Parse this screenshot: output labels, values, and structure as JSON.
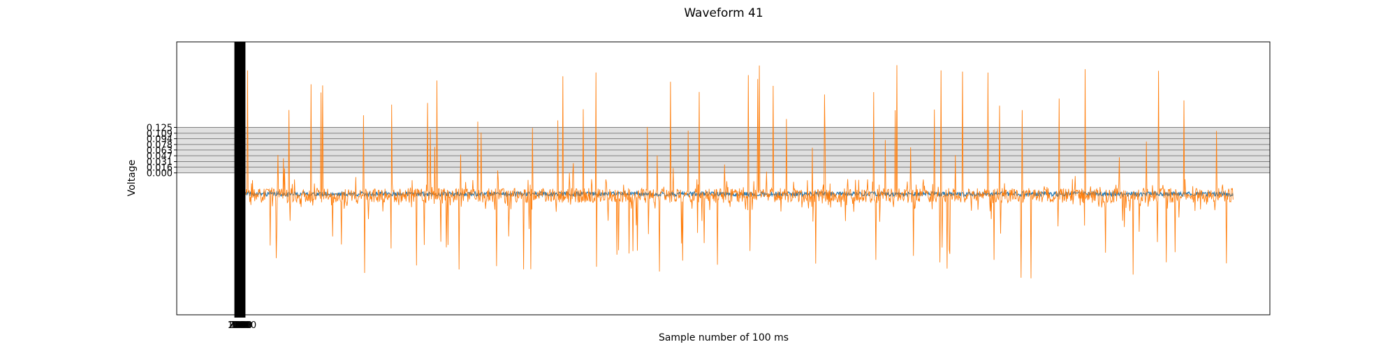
{
  "chart_data": {
    "type": "line",
    "title": "Waveform 41",
    "xlabel": "Sample number of 100 ms",
    "ylabel": "Voltage",
    "xlim": [
      -1700,
      28000
    ],
    "ylim": [
      -0.39,
      0.36
    ],
    "x_range": [
      0,
      27000
    ],
    "n_samples": 27000,
    "y_ticks": [
      0.0,
      0.016,
      0.031,
      0.047,
      0.063,
      0.078,
      0.094,
      0.109,
      0.125
    ],
    "y_tick_labels": [
      "0.000",
      "0.016",
      "0.031",
      "0.047",
      "0.063",
      "0.078",
      "0.094",
      "0.109",
      "0.125"
    ],
    "x_tick_labels": [
      "0",
      "100",
      "200",
      "300",
      "400",
      "500",
      "600",
      "700",
      "800",
      "900",
      "1000"
    ],
    "grid": true,
    "legend": "none",
    "series": [
      {
        "color": "#1f77b4",
        "baseline": -0.058,
        "noise": 0.006
      },
      {
        "color": "#ff7f0e",
        "baseline": -0.062,
        "noise": 0.02,
        "spike_max": 0.3,
        "spike_min": -0.29
      }
    ],
    "colors": {
      "grid_band": "#e0e0e0",
      "grid_line": "#808080",
      "tick_marks": "#000000"
    }
  }
}
